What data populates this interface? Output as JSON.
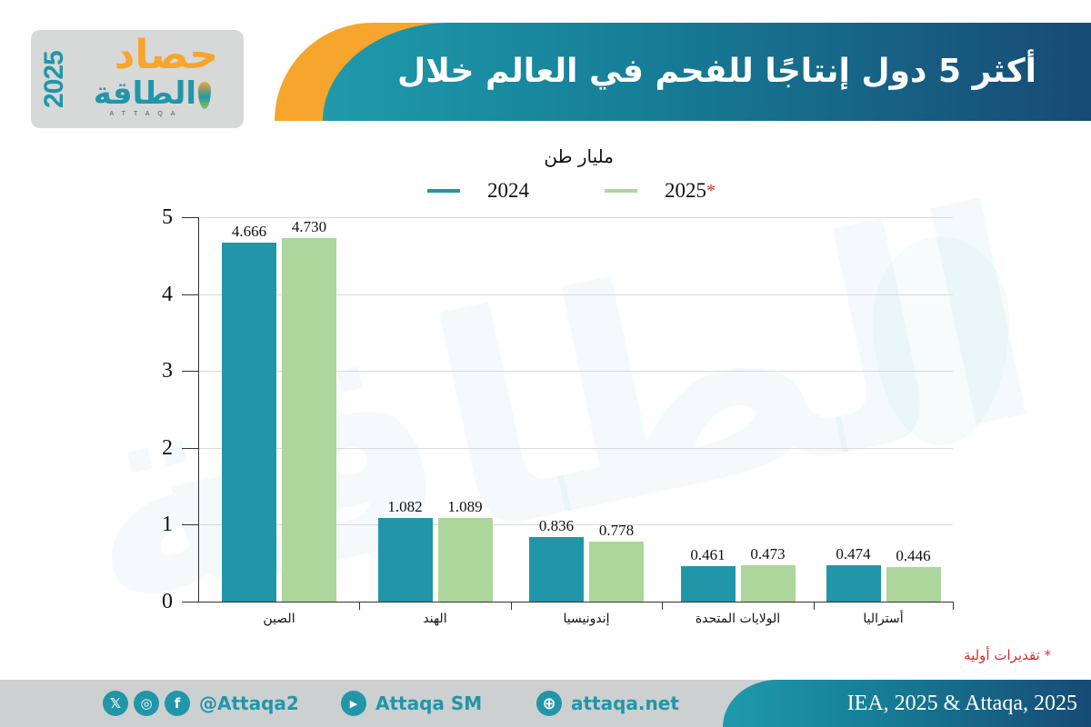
{
  "header": {
    "title": "أكثر 5 دول إنتاجًا للفحم في العالم خلال 2025",
    "logo": {
      "year": "2025",
      "title_top": "حصاد",
      "title_bottom": "الطاقة",
      "subtitle": "ATTAQA"
    }
  },
  "watermark": {
    "text": "الطاقة"
  },
  "chart": {
    "unit": "مليار طن",
    "legend": [
      {
        "label": "2024",
        "star": "",
        "color": "#2196a8"
      },
      {
        "label": "2025",
        "star": "*",
        "color": "#acd69b"
      }
    ],
    "footnote": "* تقديرات أولية"
  },
  "chart_data": {
    "type": "bar",
    "title": "أكثر 5 دول إنتاجًا للفحم في العالم خلال 2025",
    "ylabel": "مليار طن",
    "xlabel": "",
    "categories": [
      "الصين",
      "الهند",
      "إندونيسيا",
      "الولايات المتحدة",
      "أستراليا"
    ],
    "series": [
      {
        "name": "2024",
        "color": "#2196a8",
        "values": [
          4.666,
          1.082,
          0.836,
          0.461,
          0.474
        ],
        "labels": [
          "4.666",
          "1.082",
          "0.836",
          "0.461",
          "0.474"
        ]
      },
      {
        "name": "2025*",
        "color": "#acd69b",
        "values": [
          4.73,
          1.089,
          0.778,
          0.473,
          0.446
        ],
        "labels": [
          "4.730",
          "1.089",
          "0.778",
          "0.473",
          "0.446"
        ]
      }
    ],
    "ylim": [
      0,
      5
    ],
    "yticks": [
      0,
      1,
      2,
      3,
      4,
      5
    ],
    "grid": true,
    "legend_position": "top",
    "annotations": [
      "* تقديرات أولية"
    ]
  },
  "footer": {
    "social": [
      {
        "icon": "x-icon",
        "glyph": "𝕏"
      },
      {
        "icon": "instagram-icon",
        "glyph": "◎"
      },
      {
        "icon": "facebook-icon",
        "glyph": "f"
      }
    ],
    "handle": "@Attaqa2",
    "youtube": {
      "icon": "youtube-icon",
      "glyph": "▶",
      "label": "Attaqa SM"
    },
    "website": {
      "icon": "globe-icon",
      "glyph": "⊕",
      "label": "attaqa.net"
    },
    "source": "IEA, 2025 & Attaqa, 2025"
  }
}
